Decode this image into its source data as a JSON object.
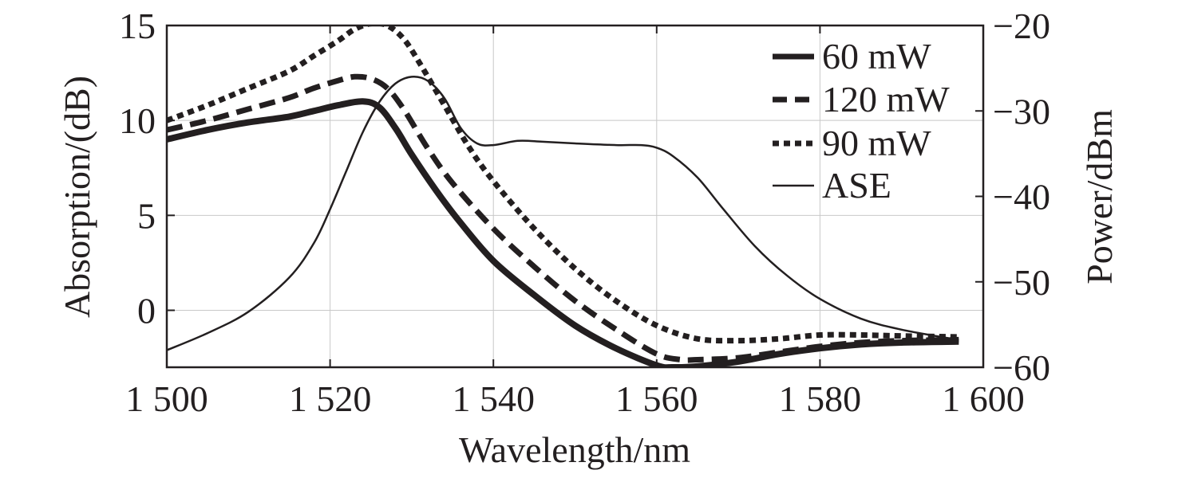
{
  "chart_data": {
    "type": "line",
    "title": "",
    "xlabel": "Wavelength/nm",
    "ylabel_left": "Absorption/(dB)",
    "ylabel_right": "Power/dBm",
    "xlim": [
      1500,
      1600
    ],
    "ylim_left": [
      -3,
      15
    ],
    "ylim_right": [
      -60,
      -20
    ],
    "x_ticks": [
      1500,
      1520,
      1540,
      1560,
      1580,
      1600
    ],
    "x_tick_labels": [
      "1 500",
      "1 520",
      "1 540",
      "1 560",
      "1 580",
      "1 600"
    ],
    "y_left_ticks": [
      0,
      5,
      10,
      15
    ],
    "y_left_tick_labels": [
      "0",
      "5",
      "10",
      "15"
    ],
    "y_right_ticks": [
      -60,
      -50,
      -40,
      -30,
      -20
    ],
    "y_right_tick_labels": [
      "−60",
      "−50",
      "−40",
      "−30",
      "−20"
    ],
    "grid": true,
    "legend_position": "top-right",
    "series": [
      {
        "name": "60 mW",
        "axis": "left",
        "style": "thick-solid",
        "x": [
          1500,
          1505,
          1510,
          1515,
          1518,
          1521,
          1524,
          1526,
          1528,
          1530,
          1533,
          1536,
          1540,
          1545,
          1550,
          1555,
          1560,
          1562,
          1565,
          1570,
          1575,
          1580,
          1585,
          1590,
          1597
        ],
        "y": [
          9.0,
          9.5,
          9.9,
          10.2,
          10.5,
          10.8,
          11.0,
          10.7,
          9.6,
          8.2,
          6.3,
          4.6,
          2.6,
          0.8,
          -0.8,
          -2.0,
          -2.9,
          -3.0,
          -2.95,
          -2.7,
          -2.3,
          -2.0,
          -1.8,
          -1.7,
          -1.65
        ]
      },
      {
        "name": "120 mW",
        "axis": "left",
        "style": "dashed",
        "x": [
          1500,
          1505,
          1510,
          1515,
          1518,
          1521,
          1523,
          1525,
          1527,
          1529,
          1532,
          1535,
          1540,
          1545,
          1550,
          1555,
          1560,
          1563,
          1565,
          1570,
          1575,
          1580,
          1585,
          1590,
          1597
        ],
        "y": [
          9.5,
          10.0,
          10.6,
          11.2,
          11.7,
          12.1,
          12.3,
          12.2,
          11.7,
          10.6,
          8.5,
          6.7,
          4.3,
          2.3,
          0.5,
          -1.0,
          -2.3,
          -2.6,
          -2.6,
          -2.5,
          -2.2,
          -1.9,
          -1.7,
          -1.6,
          -1.55
        ]
      },
      {
        "name": "90 mW",
        "axis": "left",
        "style": "dotted",
        "x": [
          1500,
          1505,
          1510,
          1515,
          1518,
          1521,
          1523,
          1525,
          1527,
          1529,
          1531,
          1534,
          1537,
          1540,
          1545,
          1550,
          1555,
          1560,
          1565,
          1570,
          1575,
          1580,
          1585,
          1590,
          1597
        ],
        "y": [
          10.0,
          10.8,
          11.7,
          12.6,
          13.4,
          14.2,
          14.8,
          15.1,
          15.0,
          14.3,
          13.0,
          10.8,
          8.6,
          6.8,
          4.3,
          2.2,
          0.5,
          -0.8,
          -1.5,
          -1.6,
          -1.5,
          -1.3,
          -1.3,
          -1.35,
          -1.4
        ]
      },
      {
        "name": "ASE",
        "axis": "right",
        "style": "thin-solid",
        "x": [
          1500,
          1505,
          1510,
          1515,
          1518,
          1520,
          1522,
          1524,
          1526,
          1528,
          1530,
          1532,
          1534,
          1536,
          1538,
          1540,
          1543,
          1546,
          1550,
          1555,
          1558,
          1560,
          1562,
          1565,
          1568,
          1572,
          1576,
          1580,
          1585,
          1590,
          1597
        ],
        "y": [
          -58.0,
          -56.0,
          -53.5,
          -49.5,
          -45.5,
          -41.5,
          -37.0,
          -32.5,
          -29.0,
          -26.8,
          -26.0,
          -26.5,
          -28.5,
          -32.0,
          -33.8,
          -34.0,
          -33.5,
          -33.6,
          -33.8,
          -34.0,
          -34.0,
          -34.3,
          -35.3,
          -37.8,
          -41.3,
          -45.8,
          -49.3,
          -52.0,
          -54.3,
          -55.6,
          -56.8
        ]
      }
    ]
  }
}
